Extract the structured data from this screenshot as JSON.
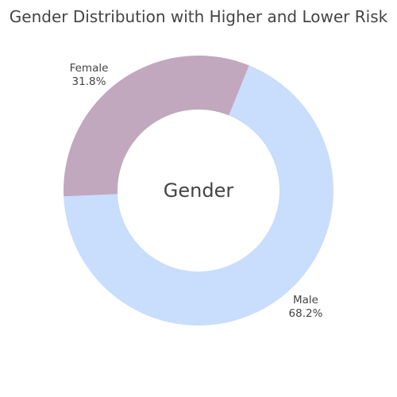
{
  "chart_data": {
    "type": "pie",
    "title": "Gender Distribution with Higher and Lower Risk",
    "center_text": "Gender",
    "hole": true,
    "slices": [
      {
        "label": "Male",
        "value": 68.2,
        "percent_text": "68.2%",
        "color": "#c9ddfd"
      },
      {
        "label": "Female",
        "value": 31.8,
        "percent_text": "31.8%",
        "color": "#c1a8be"
      }
    ],
    "legend": "none"
  }
}
